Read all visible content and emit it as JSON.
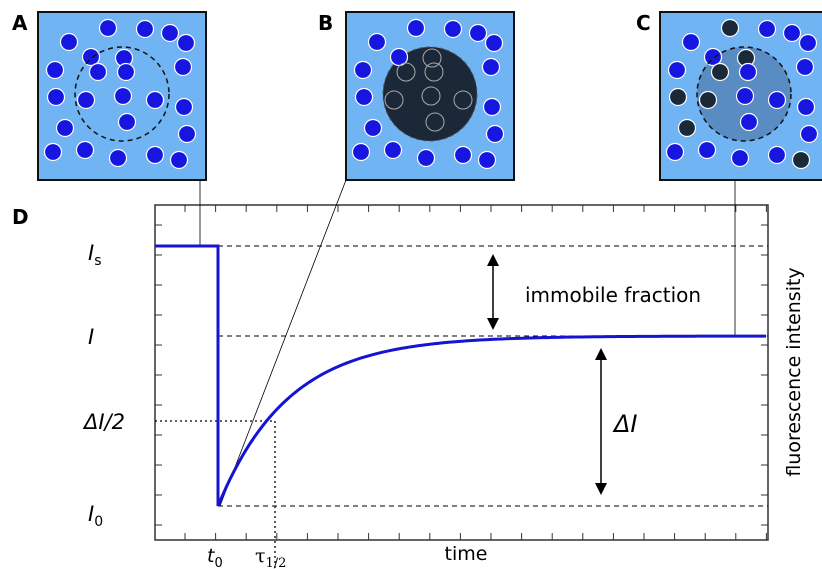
{
  "panels": [
    {
      "label": "A"
    },
    {
      "label": "B"
    },
    {
      "label": "C"
    },
    {
      "label": "D"
    }
  ],
  "y_labels": [
    {
      "main": "I",
      "sub": "s"
    },
    {
      "main": "I"
    },
    {
      "main": "ΔI/2"
    },
    {
      "main": "I",
      "sub": "0"
    }
  ],
  "x_labels": [
    {
      "main": "t",
      "sub": "0"
    },
    {
      "main": "τ",
      "sub": "1/2"
    },
    {
      "main": "time"
    }
  ],
  "annotations": {
    "immobile": "immobile fraction",
    "delta": "ΔI"
  },
  "axis_label": "fluorescence intensity"
}
